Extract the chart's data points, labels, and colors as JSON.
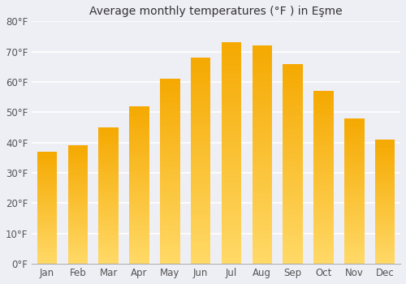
{
  "months": [
    "Jan",
    "Feb",
    "Mar",
    "Apr",
    "May",
    "Jun",
    "Jul",
    "Aug",
    "Sep",
    "Oct",
    "Nov",
    "Dec"
  ],
  "values": [
    37,
    39,
    45,
    52,
    61,
    68,
    73,
    72,
    66,
    57,
    48,
    41
  ],
  "title": "Average monthly temperatures (°F ) in Eşme",
  "ylim": [
    0,
    80
  ],
  "yticks": [
    0,
    10,
    20,
    30,
    40,
    50,
    60,
    70,
    80
  ],
  "ytick_labels": [
    "0°F",
    "10°F",
    "20°F",
    "30°F",
    "40°F",
    "50°F",
    "60°F",
    "70°F",
    "80°F"
  ],
  "bar_color_top": "#F5A800",
  "bar_color_bottom": "#FFD966",
  "background_color": "#eeeef5",
  "grid_color": "#ffffff",
  "title_fontsize": 10,
  "tick_fontsize": 8.5
}
